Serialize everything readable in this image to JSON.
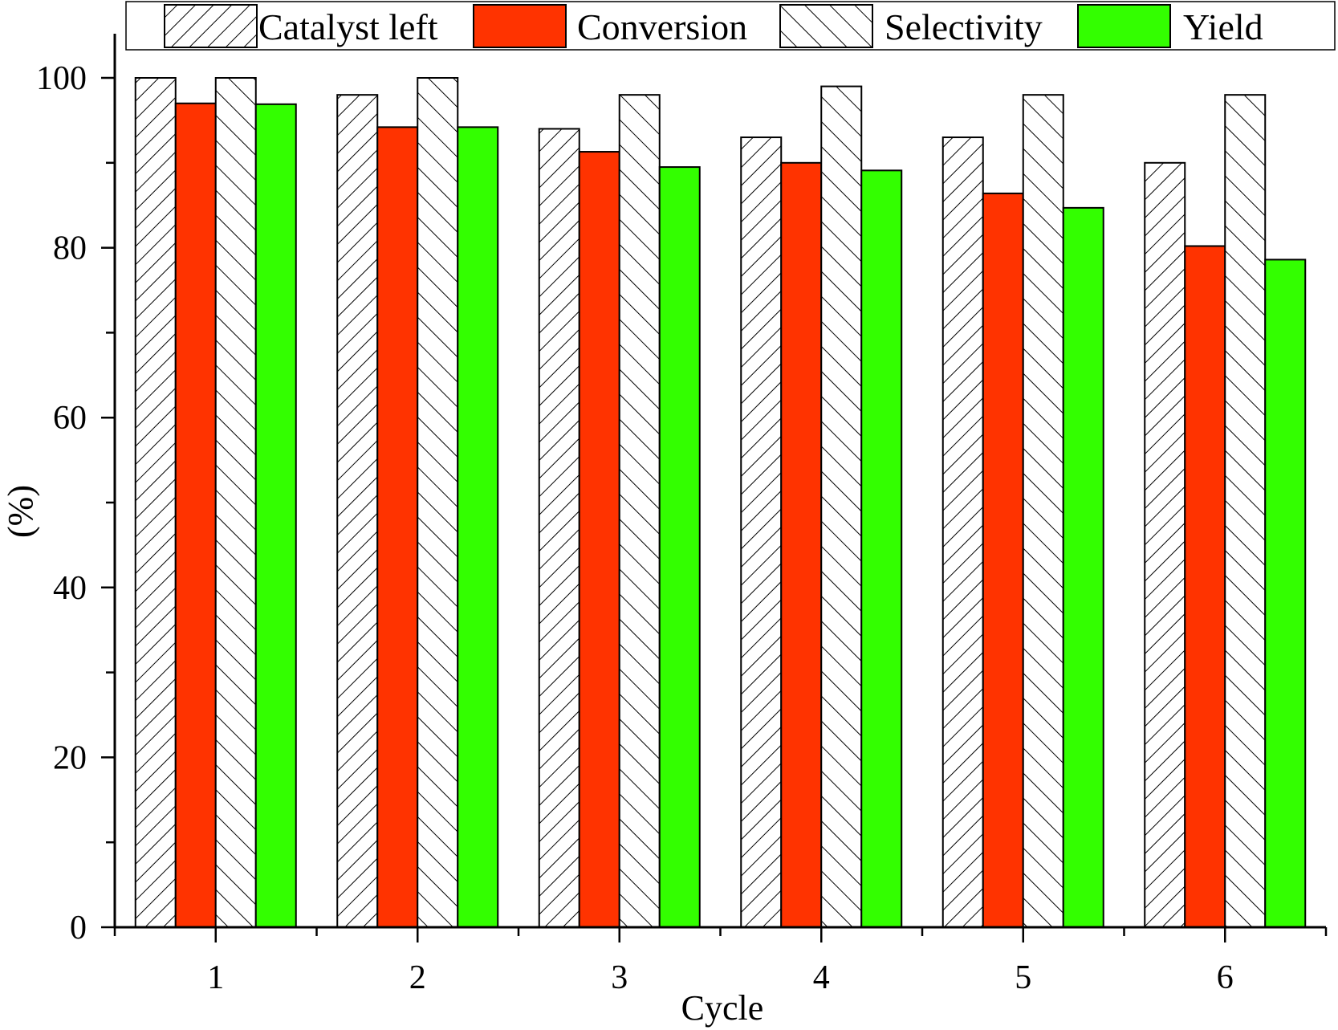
{
  "chart_data": {
    "type": "bar",
    "title": "",
    "xlabel": "Cycle",
    "ylabel": "(%)",
    "ylim": [
      0,
      100
    ],
    "yticks": [
      0,
      20,
      40,
      60,
      80,
      100
    ],
    "categories": [
      "1",
      "2",
      "3",
      "4",
      "5",
      "6"
    ],
    "legend_position": "top",
    "series": [
      {
        "name": "Catalyst left",
        "fill": "hatch-forward",
        "color": "#ffffff",
        "values": [
          100,
          98,
          94,
          93,
          93,
          90
        ]
      },
      {
        "name": "Conversion",
        "fill": "solid",
        "color": "#ff3300",
        "values": [
          97,
          94.2,
          91.3,
          90,
          86.4,
          80.2
        ]
      },
      {
        "name": "Selectivity",
        "fill": "hatch-backward",
        "color": "#ffffff",
        "values": [
          100,
          100,
          98,
          99,
          98,
          98
        ]
      },
      {
        "name": "Yield",
        "fill": "solid",
        "color": "#33ff00",
        "values": [
          96.9,
          94.2,
          89.5,
          89.1,
          84.7,
          78.6
        ]
      }
    ]
  }
}
